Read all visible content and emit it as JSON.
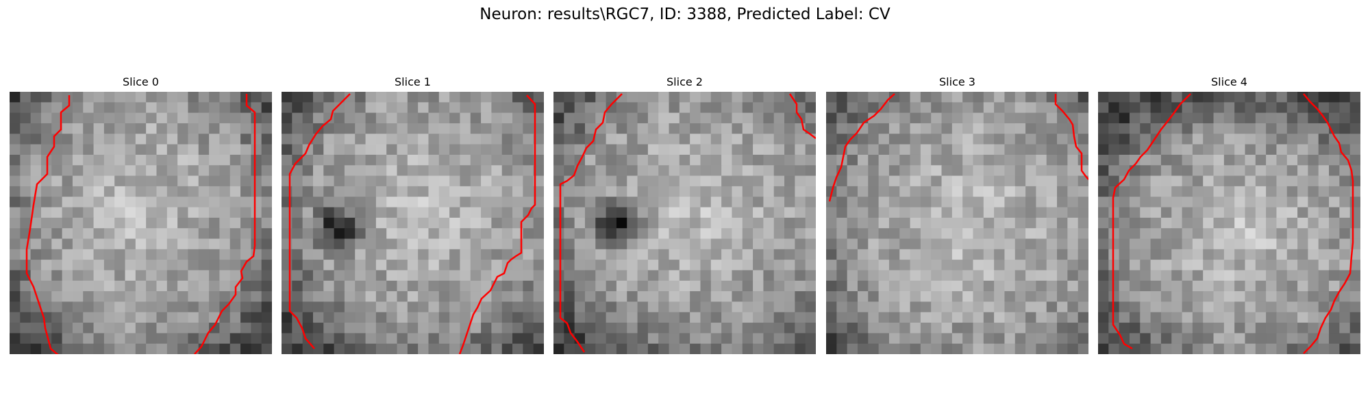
{
  "figure": {
    "title": "Neuron: results\\RGC7, ID: 3388, Predicted Label: CV",
    "contour_color": "#ff0000"
  },
  "panels": [
    {
      "title": "Slice 0"
    },
    {
      "title": "Slice 1"
    },
    {
      "title": "Slice 2"
    },
    {
      "title": "Slice 3"
    },
    {
      "title": "Slice 4"
    }
  ]
}
